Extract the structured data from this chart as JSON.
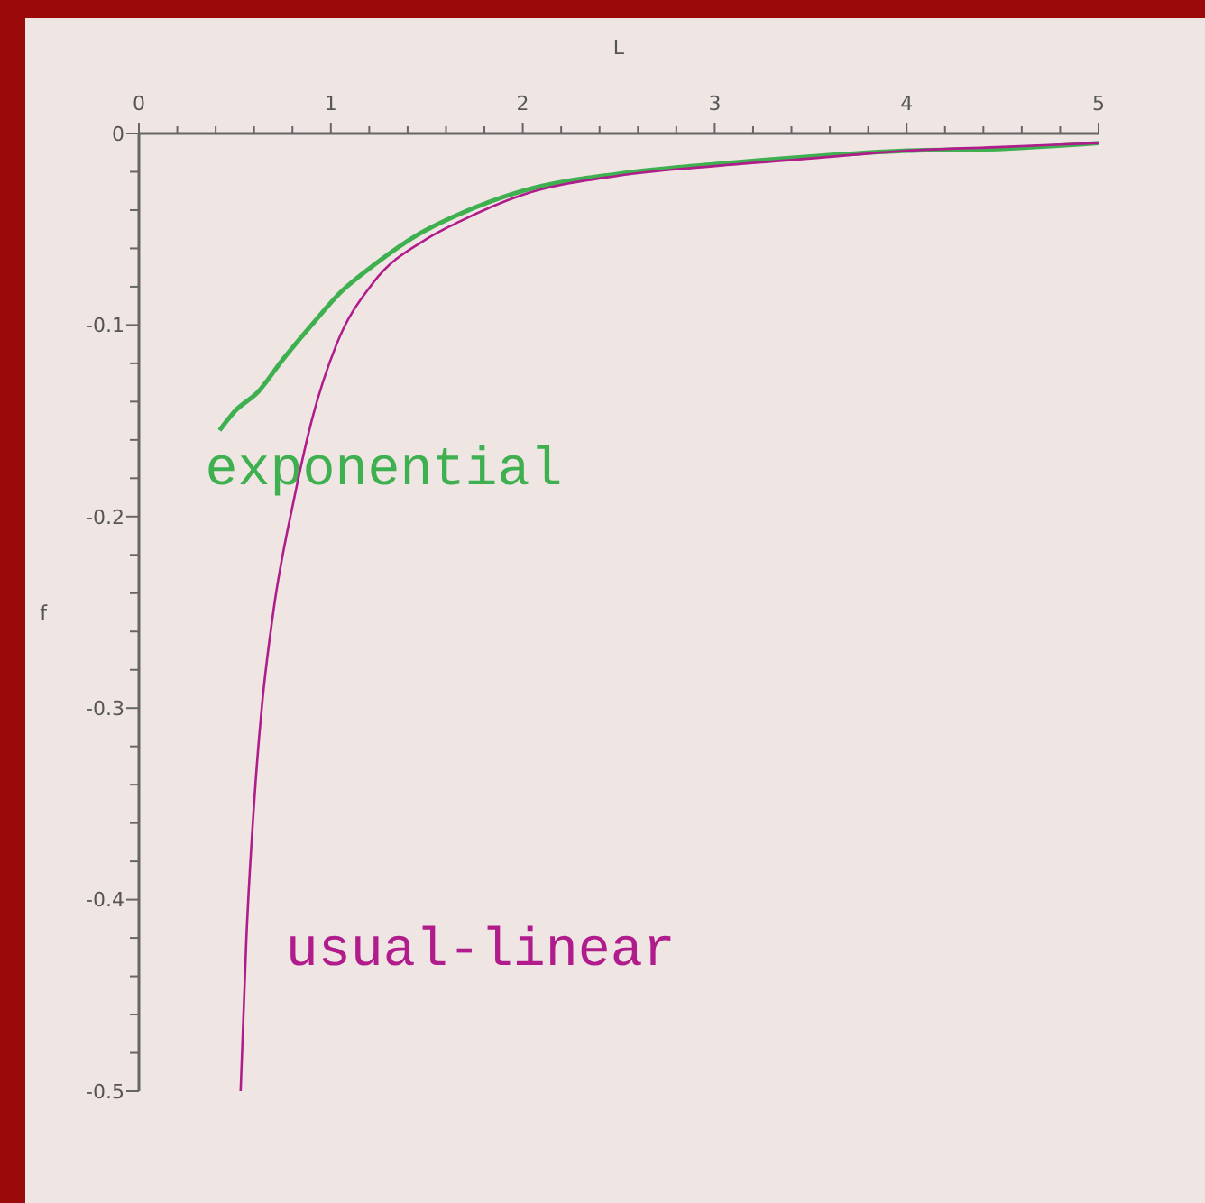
{
  "chart_data": {
    "type": "line",
    "xlabel": "L",
    "ylabel": "f",
    "xlim": [
      0,
      5
    ],
    "ylim": [
      -0.5,
      0
    ],
    "xticks": [
      0,
      {
        "value": 0.2,
        "label": null
      },
      {
        "value": 0.4,
        "label": null
      },
      {
        "value": 0.6,
        "label": null
      },
      {
        "value": 0.8,
        "label": null
      },
      1,
      {
        "value": 1.2,
        "label": null
      },
      {
        "value": 1.4,
        "label": null
      },
      {
        "value": 1.6,
        "label": null
      },
      {
        "value": 1.8,
        "label": null
      },
      2,
      {
        "value": 2.2,
        "label": null
      },
      {
        "value": 2.4,
        "label": null
      },
      {
        "value": 2.6,
        "label": null
      },
      {
        "value": 2.8,
        "label": null
      },
      3,
      {
        "value": 3.2,
        "label": null
      },
      {
        "value": 3.4,
        "label": null
      },
      {
        "value": 3.6,
        "label": null
      },
      {
        "value": 3.8,
        "label": null
      },
      4,
      {
        "value": 4.2,
        "label": null
      },
      {
        "value": 4.4,
        "label": null
      },
      {
        "value": 4.6,
        "label": null
      },
      {
        "value": 4.8,
        "label": null
      },
      5
    ],
    "yticks": [
      0,
      {
        "value": -0.02,
        "label": null
      },
      {
        "value": -0.04,
        "label": null
      },
      {
        "value": -0.06,
        "label": null
      },
      {
        "value": -0.08,
        "label": null
      },
      -0.1,
      {
        "value": -0.12,
        "label": null
      },
      {
        "value": -0.14,
        "label": null
      },
      {
        "value": -0.16,
        "label": null
      },
      {
        "value": -0.18,
        "label": null
      },
      -0.2,
      {
        "value": -0.22,
        "label": null
      },
      {
        "value": -0.24,
        "label": null
      },
      {
        "value": -0.26,
        "label": null
      },
      {
        "value": -0.28,
        "label": null
      },
      -0.3,
      {
        "value": -0.32,
        "label": null
      },
      {
        "value": -0.34,
        "label": null
      },
      {
        "value": -0.36,
        "label": null
      },
      {
        "value": -0.38,
        "label": null
      },
      -0.4,
      {
        "value": -0.42,
        "label": null
      },
      {
        "value": -0.44,
        "label": null
      },
      {
        "value": -0.46,
        "label": null
      },
      {
        "value": -0.48,
        "label": null
      },
      -0.5
    ],
    "grid": false,
    "marker": "none",
    "line_style": "solid",
    "series": [
      {
        "name": "exponential",
        "color": "#3fb04f",
        "x": [
          0.42,
          0.5,
          0.62,
          0.75,
          0.9,
          1.05,
          1.22,
          1.45,
          1.65,
          2,
          2.5,
          3,
          3.5,
          4,
          4.5,
          5
        ],
        "values": [
          -0.155,
          -0.145,
          -0.135,
          -0.118,
          -0.1,
          -0.083,
          -0.069,
          -0.053,
          -0.043,
          -0.03,
          -0.021,
          -0.016,
          -0.012,
          -0.009,
          -0.008,
          -0.005
        ]
      },
      {
        "name": "usual-linear",
        "color": "#b01c8c",
        "x": [
          0.53,
          0.56,
          0.6,
          0.64,
          0.7,
          0.81,
          0.9,
          1.03,
          1.22,
          1.5,
          1.65,
          2,
          2.5,
          3,
          3.5,
          4,
          4.5,
          5
        ],
        "values": [
          -0.5,
          -0.42,
          -0.35,
          -0.3,
          -0.25,
          -0.19,
          -0.15,
          -0.11,
          -0.078,
          -0.055,
          -0.047,
          -0.032,
          -0.022,
          -0.017,
          -0.013,
          -0.009,
          -0.007,
          -0.005
        ]
      }
    ]
  }
}
